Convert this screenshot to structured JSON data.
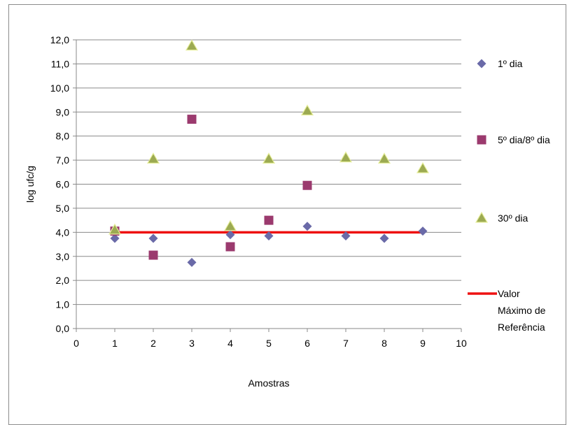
{
  "chart_data": {
    "type": "scatter",
    "title": "",
    "xlabel": "Amostras",
    "ylabel": "log ufc/g",
    "xlim": [
      0,
      10
    ],
    "ylim": [
      0,
      12
    ],
    "x_ticks": [
      "0",
      "1",
      "2",
      "3",
      "4",
      "5",
      "6",
      "7",
      "8",
      "9",
      "10"
    ],
    "y_ticks": [
      "0,0",
      "1,0",
      "2,0",
      "3,0",
      "4,0",
      "5,0",
      "6,0",
      "7,0",
      "8,0",
      "9,0",
      "10,0",
      "11,0",
      "12,0"
    ],
    "grid": "horizontal",
    "legend_position": "right",
    "series": [
      {
        "name": "1º dia",
        "marker": "diamond",
        "color": "#6a6aa8",
        "x": [
          1,
          2,
          3,
          4,
          5,
          6,
          7,
          8,
          9
        ],
        "y": [
          3.75,
          3.75,
          2.75,
          3.9,
          3.85,
          4.25,
          3.85,
          3.75,
          4.05
        ]
      },
      {
        "name": "5º dia/8º dia",
        "marker": "square",
        "color": "#9b3a6e",
        "x": [
          1,
          2,
          3,
          4,
          5,
          6
        ],
        "y": [
          4.05,
          3.05,
          8.7,
          3.4,
          4.5,
          5.95
        ]
      },
      {
        "name": "30º dia",
        "marker": "triangle",
        "color": "#9caa52",
        "x": [
          1,
          2,
          3,
          4,
          5,
          6,
          7,
          8,
          9
        ],
        "y": [
          4.1,
          7.05,
          11.75,
          4.25,
          7.05,
          9.05,
          7.1,
          7.05,
          6.65
        ]
      }
    ],
    "reference_line": {
      "name_lines": [
        "Valor",
        "Máximo de",
        "Referência"
      ],
      "value": 4.0,
      "x_range": [
        1,
        9
      ],
      "color": "#ee1111"
    }
  }
}
